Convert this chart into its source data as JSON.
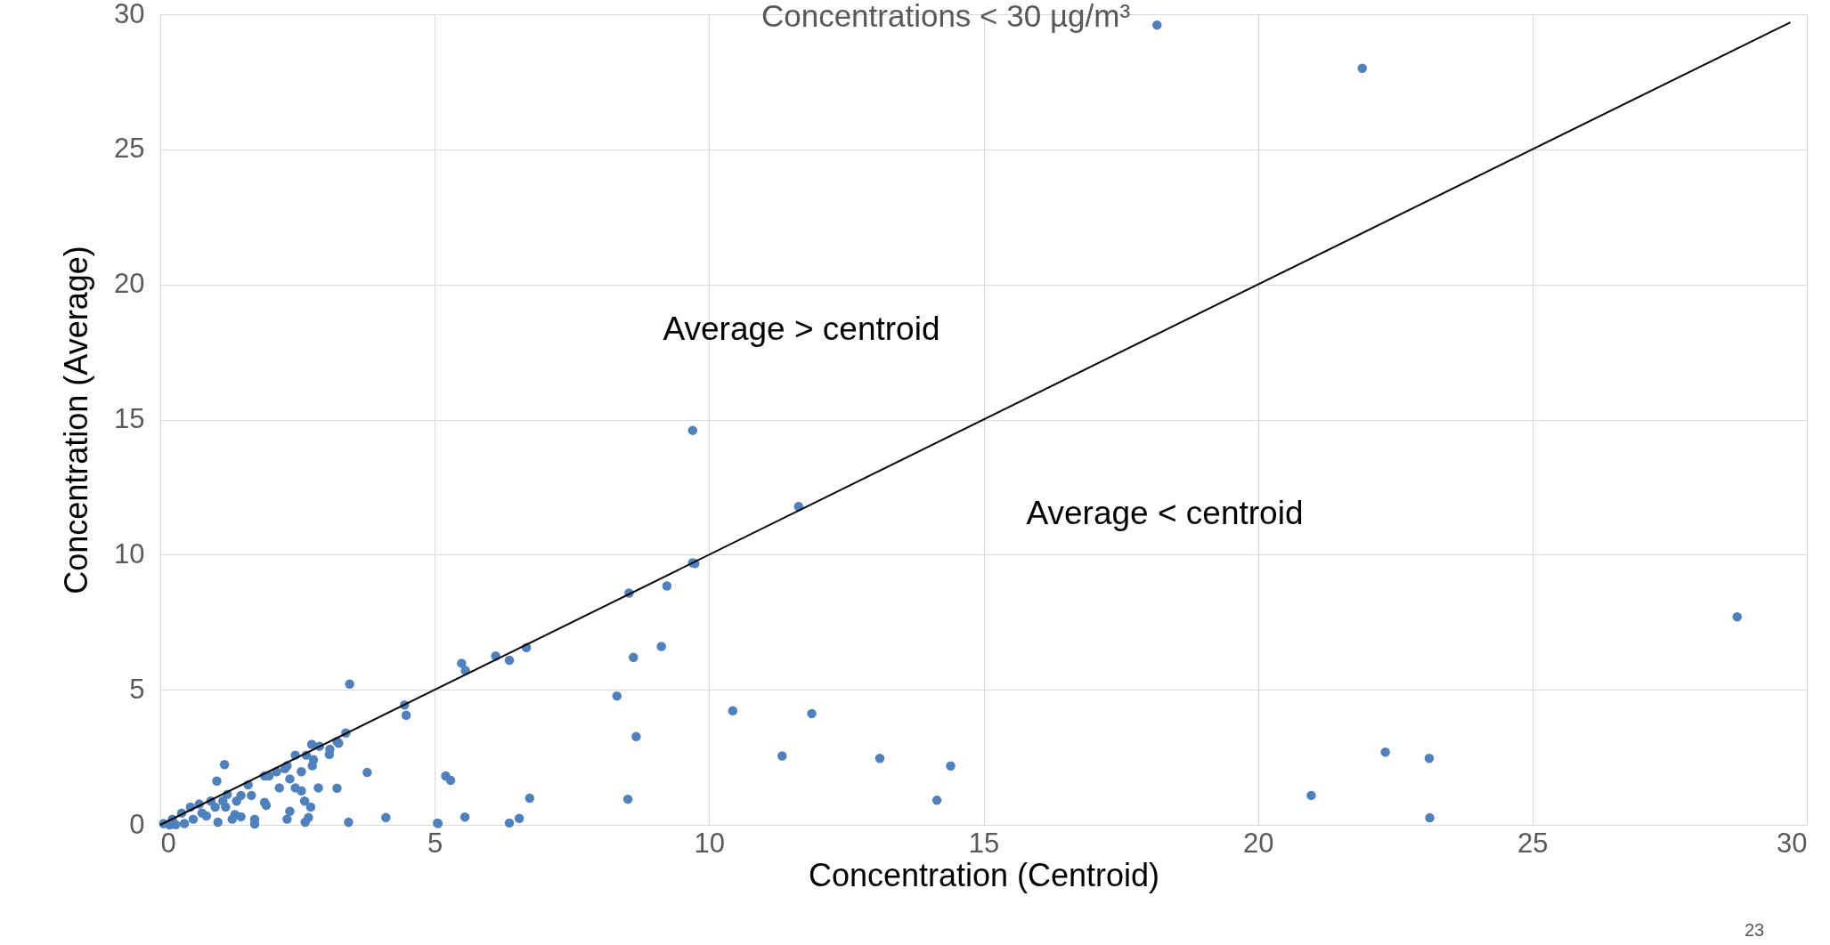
{
  "chart_data": {
    "type": "scatter",
    "title": "Concentrations < 30 µg/m³",
    "xlabel": "Concentration (Centroid)",
    "ylabel": "Concentration (Average)",
    "xlim": [
      0,
      30
    ],
    "ylim": [
      0,
      30
    ],
    "xticks": [
      0,
      5,
      10,
      15,
      20,
      25,
      30
    ],
    "yticks": [
      0,
      5,
      10,
      15,
      20,
      25,
      30
    ],
    "grid": true,
    "annotations": [
      "Average > centroid",
      "Average < centroid",
      "23"
    ],
    "series": [
      {
        "marker": "circle",
        "color": "#4f81bd",
        "x": [
          18.16,
          21.9,
          9.7,
          11.63,
          9.74,
          9.7,
          9.23,
          8.54,
          9.13,
          8.62,
          6.67,
          6.11,
          6.36,
          5.49,
          5.56,
          3.45,
          4.45,
          4.48,
          3.38,
          3.22,
          3.08,
          2.76,
          2.9,
          2.46,
          2.66,
          2.79,
          2.57,
          2.27,
          2.36,
          1.9,
          1.98,
          1.17,
          1.03,
          1.6,
          1.66,
          2.17,
          2.46,
          2.57,
          2.88,
          3.22,
          3.77,
          2.63,
          2.74,
          1.9,
          1.93,
          2.36,
          2.7,
          2.64,
          2.31,
          1.72,
          1.72,
          1.36,
          1.47,
          1.31,
          1.05,
          3.43,
          4.11,
          5.05,
          1.14,
          1.22,
          0.92,
          0.71,
          0.55,
          0.39,
          0.22,
          0.06,
          0.76,
          0.44,
          1.39,
          1.47,
          1.0,
          0.84,
          0.6,
          0.28,
          0.17,
          1.19,
          2.31,
          2.12,
          2.77,
          3.09,
          3.25,
          8.32,
          8.67,
          10.43,
          11.87,
          11.33,
          5.2,
          5.29,
          6.73,
          8.52,
          5.06,
          5.55,
          6.36,
          6.54,
          13.11,
          14.4,
          14.15,
          20.97,
          22.32,
          23.12,
          23.13,
          28.73
        ],
        "values": [
          29.6,
          28.0,
          14.6,
          11.78,
          9.67,
          9.7,
          8.84,
          8.58,
          6.6,
          6.2,
          6.56,
          6.25,
          6.09,
          5.98,
          5.71,
          5.21,
          4.44,
          4.06,
          3.4,
          3.09,
          2.61,
          2.98,
          2.91,
          2.58,
          2.58,
          2.41,
          1.97,
          2.08,
          1.7,
          1.81,
          1.81,
          2.23,
          1.62,
          1.48,
          1.09,
          1.37,
          1.37,
          1.26,
          1.37,
          1.36,
          1.94,
          0.88,
          0.66,
          0.83,
          0.72,
          0.5,
          0.27,
          0.1,
          0.21,
          0.21,
          0.03,
          0.38,
          0.3,
          0.21,
          0.1,
          0.1,
          0.27,
          0.07,
          0.88,
          1.13,
          0.88,
          0.77,
          0.66,
          0.44,
          0.21,
          0.05,
          0.44,
          0.05,
          0.88,
          1.09,
          0.66,
          0.33,
          0.21,
          0.01,
          0.0,
          0.66,
          2.19,
          1.97,
          2.19,
          2.8,
          3.02,
          4.77,
          3.27,
          4.22,
          4.12,
          2.55,
          1.81,
          1.65,
          0.99,
          0.95,
          0.05,
          0.29,
          0.07,
          0.24,
          2.46,
          2.18,
          0.91,
          1.09,
          2.69,
          2.46,
          0.26,
          7.7
        ]
      },
      {
        "type": "line",
        "marker": "none",
        "color": "#000000",
        "x": [
          0,
          29.7
        ],
        "values": [
          0,
          29.7
        ]
      }
    ]
  }
}
